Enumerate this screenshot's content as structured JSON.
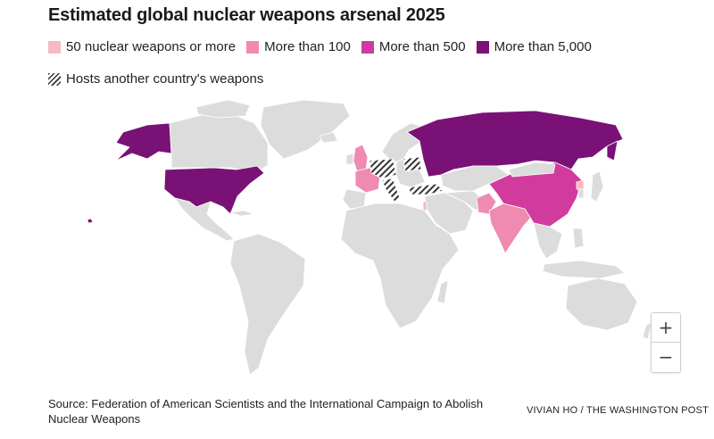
{
  "title": "Estimated global nuclear weapons arsenal 2025",
  "legend": {
    "items": [
      {
        "label": "50 nuclear weapons or more",
        "color": "#f7b9c0"
      },
      {
        "label": "More than 100",
        "color": "#ef8bb0"
      },
      {
        "label": "More than 500",
        "color": "#d13b9e"
      },
      {
        "label": "More than 5,000",
        "color": "#7a1177"
      }
    ],
    "hosts_label": "Hosts another country's weapons"
  },
  "map": {
    "land_color": "#dcdcdc",
    "tiers": {
      "usa": "More than 5,000",
      "russia": "More than 5,000",
      "china": "More than 500",
      "france": "More than 100",
      "uk": "More than 100",
      "india": "More than 100",
      "pakistan": "More than 100",
      "israel": "50 nuclear weapons or more",
      "north_korea": "50 nuclear weapons or more"
    },
    "hosts": [
      "Germany",
      "Netherlands",
      "Belgium",
      "Italy",
      "Turkey",
      "Belarus"
    ]
  },
  "zoom": {
    "in_label": "+",
    "out_label": "−"
  },
  "source": "Source: Federation of American Scientists and the International Campaign to Abolish Nuclear Weapons",
  "credit": "VIVIAN HO / THE WASHINGTON POST"
}
